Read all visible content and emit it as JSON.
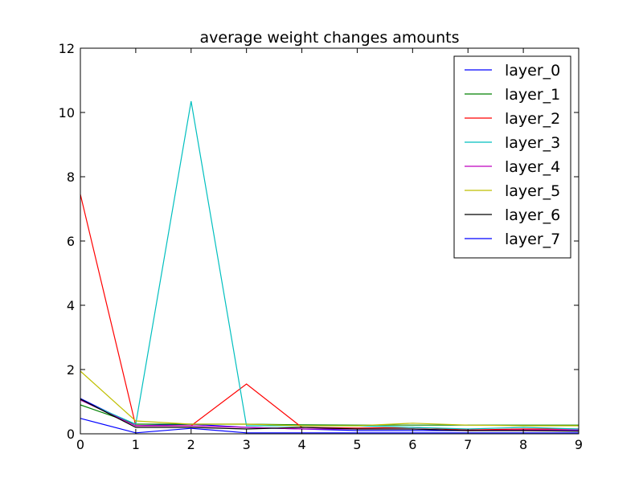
{
  "chart_data": {
    "type": "line",
    "title": "average weight changes amounts",
    "xlabel": "",
    "ylabel": "",
    "xlim": [
      0,
      9
    ],
    "ylim": [
      0,
      12
    ],
    "x": [
      0,
      1,
      2,
      3,
      4,
      5,
      6,
      7,
      8,
      9
    ],
    "xticks": [
      "0",
      "1",
      "2",
      "3",
      "4",
      "5",
      "6",
      "7",
      "8",
      "9"
    ],
    "yticks": [
      "0",
      "2",
      "4",
      "6",
      "8",
      "10",
      "12"
    ],
    "grid": false,
    "legend_position": "top-right",
    "series": [
      {
        "name": "layer_0",
        "color": "#0000ff",
        "values": [
          1.1,
          0.25,
          0.3,
          0.2,
          0.15,
          0.1,
          0.1,
          0.1,
          0.1,
          0.1
        ]
      },
      {
        "name": "layer_1",
        "color": "#008000",
        "values": [
          0.9,
          0.3,
          0.3,
          0.3,
          0.28,
          0.27,
          0.27,
          0.27,
          0.27,
          0.27
        ]
      },
      {
        "name": "layer_2",
        "color": "#ff0000",
        "values": [
          7.45,
          0.25,
          0.25,
          1.55,
          0.2,
          0.18,
          0.2,
          0.12,
          0.15,
          0.15
        ]
      },
      {
        "name": "layer_3",
        "color": "#00bfbf",
        "values": [
          1.05,
          0.3,
          10.35,
          0.25,
          0.25,
          0.25,
          0.2,
          0.15,
          0.2,
          0.15
        ]
      },
      {
        "name": "layer_4",
        "color": "#bf00bf",
        "values": [
          1.05,
          0.25,
          0.25,
          0.2,
          0.15,
          0.15,
          0.15,
          0.1,
          0.12,
          0.12
        ]
      },
      {
        "name": "layer_5",
        "color": "#bfbf00",
        "values": [
          1.95,
          0.4,
          0.3,
          0.3,
          0.25,
          0.25,
          0.33,
          0.27,
          0.25,
          0.25
        ]
      },
      {
        "name": "layer_6",
        "color": "#000000",
        "values": [
          1.08,
          0.2,
          0.2,
          0.15,
          0.2,
          0.15,
          0.15,
          0.1,
          0.1,
          0.08
        ]
      },
      {
        "name": "layer_7",
        "color": "#0000ff",
        "values": [
          0.48,
          0.03,
          0.17,
          0.03,
          0.03,
          0.03,
          0.03,
          0.03,
          0.03,
          0.03
        ]
      }
    ]
  }
}
